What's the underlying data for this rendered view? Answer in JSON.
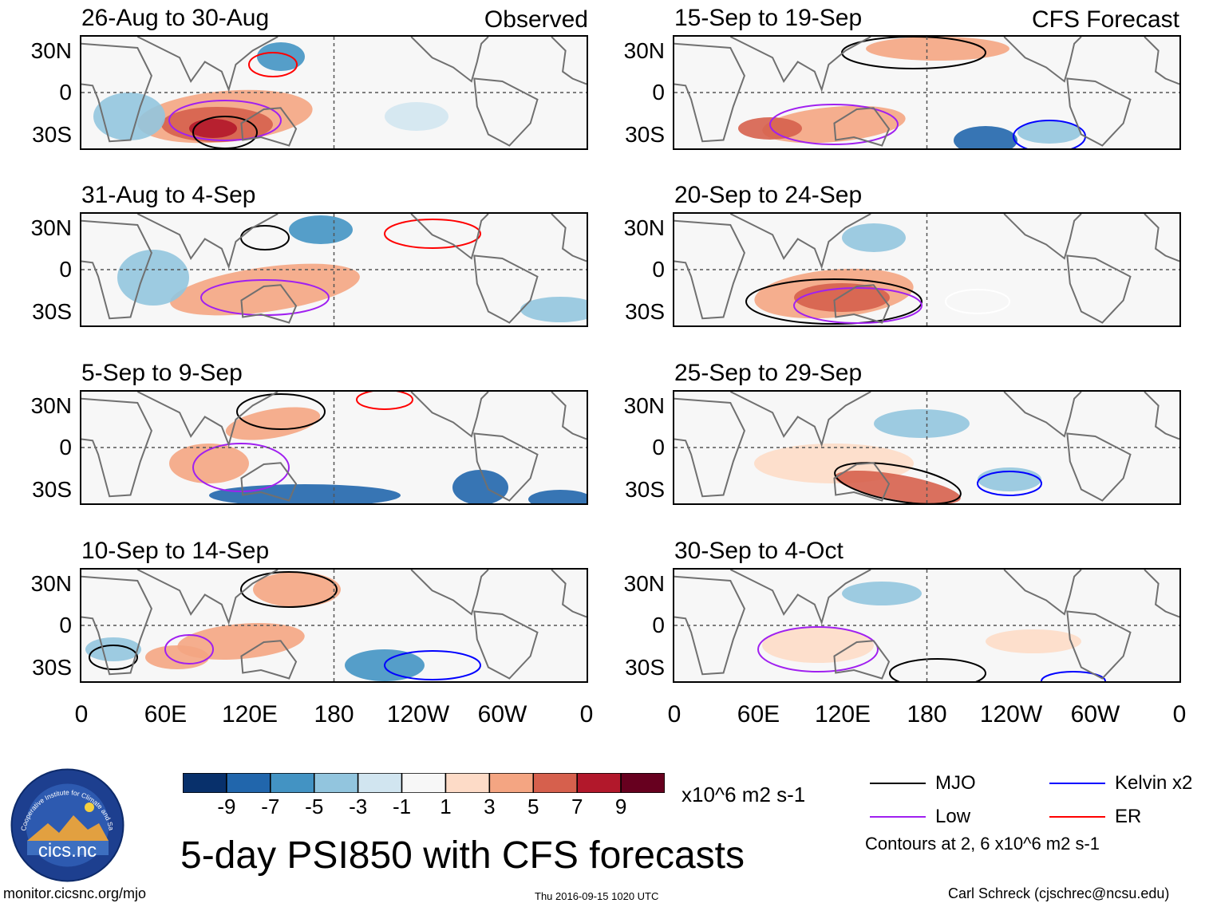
{
  "header_left": "Observed",
  "header_right": "CFS Forecast",
  "panels_left": [
    {
      "title": "26-Aug to 30-Aug"
    },
    {
      "title": "31-Aug to 4-Sep"
    },
    {
      "title": "5-Sep to 9-Sep"
    },
    {
      "title": "10-Sep to 14-Sep"
    }
  ],
  "panels_right": [
    {
      "title": "15-Sep to 19-Sep"
    },
    {
      "title": "20-Sep to 24-Sep"
    },
    {
      "title": "25-Sep to 29-Sep"
    },
    {
      "title": "30-Sep to 4-Oct"
    }
  ],
  "y_labels": [
    "30N",
    "0",
    "30S"
  ],
  "x_labels": [
    "0",
    "60E",
    "120E",
    "180",
    "120W",
    "60W",
    "0"
  ],
  "colorbar": {
    "colors": [
      "#08306b",
      "#2166ac",
      "#4393c3",
      "#92c5de",
      "#d1e5f0",
      "#f7f7f7",
      "#fddbc7",
      "#f4a582",
      "#d6604d",
      "#b2182b",
      "#67001f"
    ],
    "ticks": [
      "-9",
      "-7",
      "-5",
      "-3",
      "-1",
      "1",
      "3",
      "5",
      "7",
      "9"
    ],
    "units": "x10^6 m2 s-1"
  },
  "legend": {
    "items": [
      {
        "label": "MJO",
        "color": "#000000"
      },
      {
        "label": "Kelvin x2",
        "color": "#0000ff"
      },
      {
        "label": "Low",
        "color": "#a020f0"
      },
      {
        "label": "ER",
        "color": "#ff0000"
      }
    ],
    "note": "Contours at 2, 6 x10^6 m2 s-1"
  },
  "logo": {
    "text": "cics.nc",
    "ring_text": "Cooperative Institute for Climate and Satellites"
  },
  "main_title": "5-day PSI850 with CFS forecasts",
  "footer": {
    "url": "monitor.cicsnc.org/mjo",
    "timestamp": "Thu 2016-09-15 1020 UTC",
    "author": "Carl Schreck (cjschrec@ncsu.edu)"
  }
}
